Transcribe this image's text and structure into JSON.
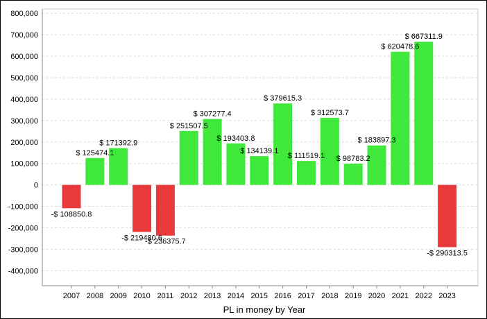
{
  "chart_data": {
    "type": "bar",
    "xlabel": "PL in money by Year",
    "ylabel": "",
    "title": "",
    "ylim": [
      -470000,
      820000
    ],
    "yticks": [
      -400000,
      -300000,
      -200000,
      -100000,
      0,
      100000,
      200000,
      300000,
      400000,
      500000,
      600000,
      700000,
      800000
    ],
    "ytick_labels": [
      "-400,000",
      "-300,000",
      "-200,000",
      "-100,000",
      "0",
      "100,000",
      "200,000",
      "300,000",
      "400,000",
      "500,000",
      "600,000",
      "700,000",
      "800,000"
    ],
    "grid": true,
    "categories": [
      "2007",
      "2008",
      "2009",
      "2010",
      "2011",
      "2012",
      "2013",
      "2014",
      "2015",
      "2016",
      "2017",
      "2018",
      "2019",
      "2020",
      "2021",
      "2022",
      "2023"
    ],
    "values": [
      -108850.8,
      125474.1,
      171392.9,
      -219480.6,
      -236375.7,
      251507.5,
      307277.4,
      193403.8,
      134139.1,
      379615.3,
      111519.1,
      312573.7,
      98783.2,
      183897.3,
      620478.6,
      667311.9,
      -290313.5
    ],
    "data_labels": [
      "-$ 108850.8",
      "$ 125474.1",
      "$ 171392.9",
      "-$ 219480.6",
      "-$ 236375.7",
      "$ 251507.5",
      "$ 307277.4",
      "$ 193403.8",
      "$ 134139.1",
      "$ 379615.3",
      "$ 111519.1",
      "$ 312573.7",
      "$ 98783.2",
      "$ 183897.3",
      "$ 620478.6",
      "$ 667311.9",
      "-$ 290313.5"
    ],
    "colors": {
      "positive": "#3fe83a",
      "negative": "#e83a3a",
      "grid": "#d9d9d9",
      "axis": "#888888",
      "text": "#000000"
    }
  }
}
